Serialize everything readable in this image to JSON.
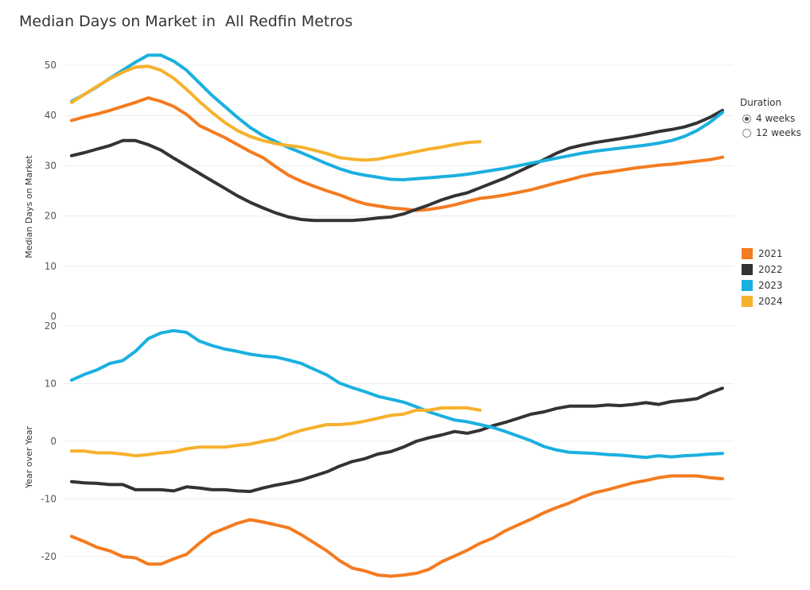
{
  "title": "Median Days on Market in  All Redfin Metros",
  "filters": {
    "duration_title": "Duration",
    "options": [
      {
        "label": "4 weeks",
        "checked": true
      },
      {
        "label": "12 weeks",
        "checked": false
      }
    ]
  },
  "legend": [
    {
      "label": "2021",
      "color": "#f47b20"
    },
    {
      "label": "2022",
      "color": "#333333"
    },
    {
      "label": "2023",
      "color": "#1ab0e0"
    },
    {
      "label": "2024",
      "color": "#f6b12d"
    }
  ],
  "chart_data": [
    {
      "type": "line",
      "title": "",
      "xlabel": "",
      "ylabel": "Median Days on Market",
      "ylim": [
        0,
        52
      ],
      "yticks": [
        0,
        10,
        20,
        30,
        40,
        50
      ],
      "grid": true,
      "x": "week index 1-52",
      "series": [
        {
          "name": "2021",
          "color": "#f47b20",
          "values": [
            39,
            39.7,
            40.3,
            41,
            41.8,
            42.6,
            43.5,
            42.8,
            41.8,
            40.2,
            38,
            36.8,
            35.6,
            34.2,
            32.8,
            31.6,
            29.8,
            28.1,
            26.9,
            25.9,
            25,
            24.2,
            23.2,
            22.4,
            22,
            21.6,
            21.4,
            21.1,
            21.3,
            21.7,
            22.2,
            22.9,
            23.5,
            23.8,
            24.2,
            24.7,
            25.2,
            25.9,
            26.6,
            27.2,
            27.9,
            28.4,
            28.7,
            29.1,
            29.5,
            29.8,
            30.1,
            30.3,
            30.6,
            30.9,
            31.2,
            31.7
          ]
        },
        {
          "name": "2022",
          "color": "#333333",
          "values": [
            32,
            32.6,
            33.3,
            34,
            35,
            35,
            34.2,
            33.1,
            31.5,
            30,
            28.5,
            27,
            25.5,
            24,
            22.7,
            21.6,
            20.6,
            19.8,
            19.3,
            19.1,
            19.1,
            19.1,
            19.1,
            19.3,
            19.6,
            19.8,
            20.4,
            21.3,
            22.2,
            23.2,
            24,
            24.6,
            25.6,
            26.6,
            27.6,
            28.8,
            30,
            31.2,
            32.5,
            33.5,
            34.1,
            34.6,
            35,
            35.4,
            35.8,
            36.3,
            36.8,
            37.2,
            37.7,
            38.5,
            39.6,
            41
          ]
        },
        {
          "name": "2023",
          "color": "#1ab0e0",
          "values": [
            42.8,
            44.2,
            45.7,
            47.4,
            49,
            50.6,
            52,
            52,
            50.8,
            49,
            46.5,
            44,
            41.8,
            39.6,
            37.6,
            36,
            34.8,
            33.6,
            32.6,
            31.5,
            30.4,
            29.4,
            28.6,
            28.1,
            27.7,
            27.3,
            27.2,
            27.4,
            27.6,
            27.8,
            28,
            28.3,
            28.7,
            29.1,
            29.5,
            30,
            30.5,
            31,
            31.5,
            32,
            32.5,
            32.9,
            33.2,
            33.5,
            33.8,
            34.1,
            34.5,
            35,
            35.8,
            37,
            38.6,
            40.6
          ]
        },
        {
          "name": "2024",
          "color": "#f6b12d",
          "values": [
            42.6,
            44.2,
            45.8,
            47.3,
            48.6,
            49.6,
            49.8,
            49,
            47.4,
            45.2,
            42.8,
            40.6,
            38.6,
            37,
            35.8,
            35,
            34.4,
            34,
            33.7,
            33.1,
            32.4,
            31.6,
            31.3,
            31.1,
            31.3,
            31.8,
            32.3,
            32.8,
            33.3,
            33.7,
            34.2,
            34.6,
            34.8
          ]
        }
      ]
    },
    {
      "type": "line",
      "title": "",
      "xlabel": "",
      "ylabel": "Year over Year",
      "ylim": [
        -22,
        20
      ],
      "yticks": [
        -20,
        -10,
        0,
        10,
        20
      ],
      "grid": true,
      "x": "week index 1-52",
      "series": [
        {
          "name": "2021",
          "color": "#f47b20",
          "values": [
            -16.5,
            -17.4,
            -18.4,
            -19,
            -20,
            -20.2,
            -21.3,
            -21.3,
            -20.4,
            -19.6,
            -17.7,
            -16,
            -15.1,
            -14.2,
            -13.6,
            -14,
            -14.5,
            -15,
            -16.2,
            -17.6,
            -19,
            -20.7,
            -22,
            -22.5,
            -23.2,
            -23.4,
            -23.2,
            -22.9,
            -22.2,
            -20.9,
            -19.9,
            -18.9,
            -17.7,
            -16.8,
            -15.5,
            -14.5,
            -13.5,
            -12.4,
            -11.5,
            -10.7,
            -9.7,
            -8.9,
            -8.4,
            -7.8,
            -7.2,
            -6.8,
            -6.3,
            -6,
            -6,
            -6,
            -6.3,
            -6.5
          ]
        },
        {
          "name": "2022",
          "color": "#333333",
          "values": [
            -7,
            -7.2,
            -7.3,
            -7.5,
            -7.5,
            -8.4,
            -8.4,
            -8.4,
            -8.6,
            -7.9,
            -8.1,
            -8.4,
            -8.4,
            -8.6,
            -8.7,
            -8.1,
            -7.6,
            -7.2,
            -6.7,
            -6,
            -5.3,
            -4.3,
            -3.5,
            -3,
            -2.2,
            -1.8,
            -1,
            0,
            0.6,
            1.1,
            1.7,
            1.4,
            1.9,
            2.7,
            3.3,
            4,
            4.7,
            5.1,
            5.7,
            6.1,
            6.1,
            6.1,
            6.3,
            6.2,
            6.4,
            6.7,
            6.4,
            6.9,
            7.1,
            7.4,
            8.4,
            9.2
          ]
        },
        {
          "name": "2023",
          "color": "#1ab0e0",
          "values": [
            10.6,
            11.6,
            12.4,
            13.5,
            14,
            15.6,
            17.8,
            18.8,
            19.2,
            18.9,
            17.4,
            16.6,
            16,
            15.6,
            15.1,
            14.8,
            14.6,
            14.1,
            13.5,
            12.5,
            11.5,
            10.1,
            9.3,
            8.6,
            7.8,
            7.3,
            6.8,
            6,
            5.1,
            4.4,
            3.7,
            3.4,
            2.9,
            2.4,
            1.7,
            0.9,
            0.1,
            -0.9,
            -1.5,
            -1.9,
            -2,
            -2.1,
            -2.3,
            -2.4,
            -2.6,
            -2.8,
            -2.5,
            -2.7,
            -2.5,
            -2.4,
            -2.2,
            -2.1
          ]
        },
        {
          "name": "2024",
          "color": "#f6b12d",
          "values": [
            -1.7,
            -1.7,
            -2,
            -2,
            -2.2,
            -2.5,
            -2.3,
            -2,
            -1.8,
            -1.3,
            -1,
            -1,
            -1,
            -0.7,
            -0.5,
            0,
            0.4,
            1.2,
            1.9,
            2.4,
            2.9,
            2.9,
            3.1,
            3.5,
            4,
            4.5,
            4.7,
            5.4,
            5.4,
            5.8,
            5.8,
            5.8,
            5.4
          ]
        }
      ]
    }
  ]
}
